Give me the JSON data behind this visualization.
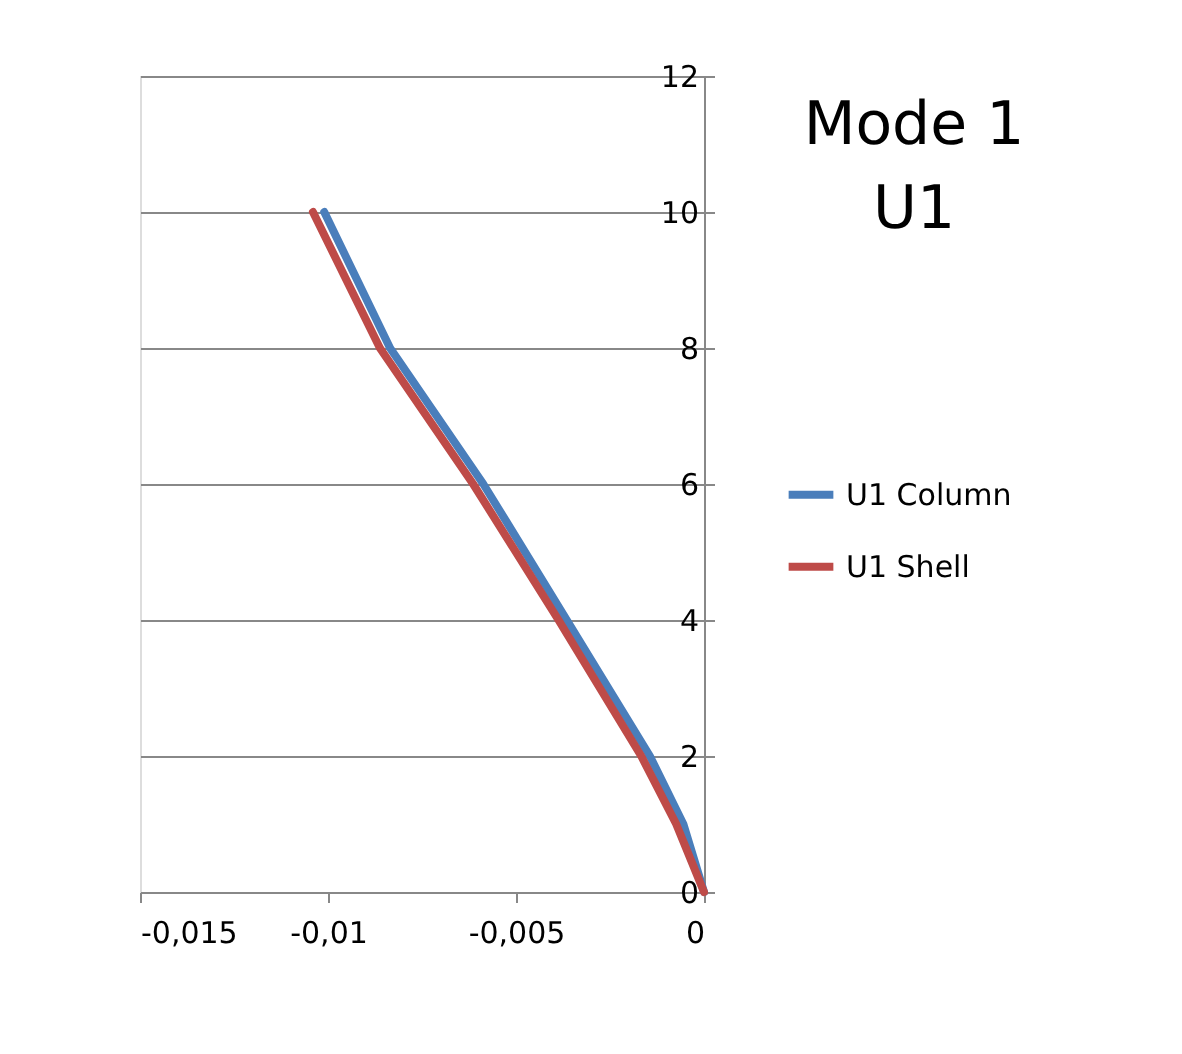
{
  "chart_data": {
    "type": "line",
    "title": "Mode 1\nU1",
    "xlim": [
      -0.015,
      0
    ],
    "xticks": [
      {
        "value": -0.015,
        "label": "-0,015"
      },
      {
        "value": -0.01,
        "label": "-0,01"
      },
      {
        "value": -0.005,
        "label": "-0,005"
      },
      {
        "value": 0,
        "label": "0"
      }
    ],
    "ylim": [
      0,
      12
    ],
    "yticks": [
      0,
      2,
      4,
      6,
      8,
      10,
      12
    ],
    "grid": "y",
    "legend": "right",
    "marker": "none",
    "line_style": "solid",
    "series": [
      {
        "name": "U1 Column",
        "color": "#4a7ebb",
        "x": [
          0,
          -0.00055,
          -0.00144,
          -0.00365,
          -0.00587,
          -0.00835,
          -0.0101
        ],
        "values": [
          0,
          1,
          2,
          4,
          6,
          8,
          10
        ]
      },
      {
        "name": "U1 Shell",
        "color": "#be4b48",
        "x": [
          0,
          -0.00074,
          -0.00167,
          -0.00387,
          -0.00614,
          -0.00862,
          -0.0104
        ],
        "values": [
          0,
          1,
          2,
          4,
          6,
          8,
          10
        ]
      }
    ]
  }
}
